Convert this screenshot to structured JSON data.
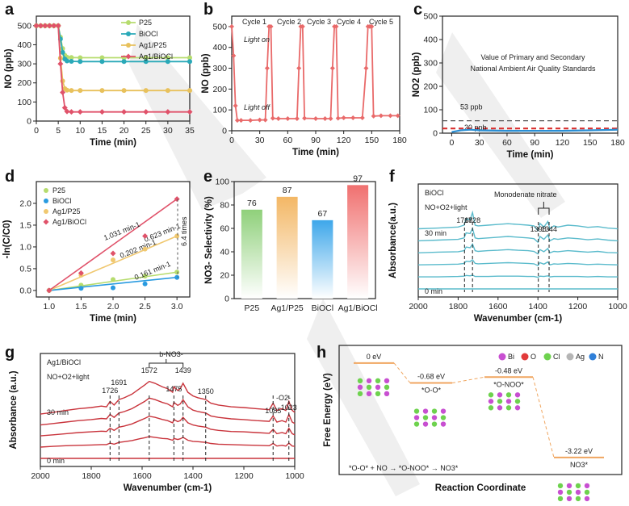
{
  "chart_data": [
    {
      "id": "a",
      "panel_label": "a",
      "type": "line",
      "xlabel": "Time (min)",
      "ylabel": "NO (ppb)",
      "xlim": [
        0,
        35
      ],
      "ylim": [
        0,
        550
      ],
      "xticks": [
        "0",
        "5",
        "10",
        "15",
        "20",
        "25",
        "30",
        "35"
      ],
      "yticks": [
        "0",
        "100",
        "200",
        "300",
        "400",
        "500"
      ],
      "x": [
        0,
        1,
        2,
        3,
        4,
        5,
        5.5,
        6,
        6.5,
        7,
        8,
        10,
        15,
        20,
        25,
        30,
        35
      ],
      "series": [
        {
          "name": "P25",
          "color": "#b6dc6e",
          "values": [
            500,
            500,
            500,
            500,
            500,
            500,
            440,
            380,
            345,
            335,
            333,
            332,
            332,
            332,
            332,
            332,
            332
          ]
        },
        {
          "name": "BiOCl",
          "color": "#2aa9b8",
          "values": [
            500,
            500,
            500,
            500,
            500,
            500,
            430,
            360,
            325,
            315,
            313,
            312,
            312,
            312,
            312,
            312,
            312
          ]
        },
        {
          "name": "Ag1/P25",
          "color": "#e8c15c",
          "values": [
            500,
            500,
            500,
            500,
            500,
            500,
            330,
            210,
            170,
            162,
            160,
            160,
            160,
            160,
            160,
            160,
            160
          ]
        },
        {
          "name": "Ag1/BiOCl",
          "color": "#e0526a",
          "values": [
            500,
            500,
            500,
            500,
            500,
            500,
            300,
            150,
            70,
            50,
            48,
            48,
            48,
            48,
            48,
            48,
            48
          ]
        }
      ]
    },
    {
      "id": "b",
      "panel_label": "b",
      "type": "line",
      "xlabel": "Time (min)",
      "ylabel": "NO (ppb)",
      "xlim": [
        0,
        180
      ],
      "ylim": [
        0,
        550
      ],
      "xticks": [
        "0",
        "30",
        "60",
        "90",
        "120",
        "150",
        "180"
      ],
      "yticks": [
        "0",
        "100",
        "200",
        "300",
        "400",
        "500"
      ],
      "cycle_labels": [
        "Cycle 1",
        "Cycle 2",
        "Cycle 3",
        "Cycle 4",
        "Cycle 5"
      ],
      "annotations": [
        "Light on",
        "Light off"
      ],
      "color": "#e96a6a",
      "x": [
        0,
        2,
        4,
        6,
        10,
        20,
        30,
        36,
        38,
        40,
        42,
        44,
        50,
        60,
        70,
        72,
        74,
        76,
        78,
        90,
        100,
        106,
        108,
        110,
        112,
        114,
        120,
        130,
        140,
        144,
        146,
        148,
        150,
        152,
        160,
        170,
        178
      ],
      "values": [
        500,
        360,
        120,
        50,
        50,
        50,
        52,
        52,
        300,
        500,
        500,
        60,
        58,
        58,
        58,
        300,
        500,
        500,
        60,
        58,
        58,
        58,
        300,
        500,
        500,
        60,
        62,
        62,
        62,
        300,
        500,
        500,
        500,
        70,
        72,
        72,
        72
      ]
    },
    {
      "id": "c",
      "panel_label": "c",
      "type": "line",
      "xlabel": "Time (min)",
      "ylabel": "NO2 (ppb)",
      "xlim": [
        -10,
        180
      ],
      "ylim": [
        0,
        500
      ],
      "xticks": [
        "0",
        "30",
        "60",
        "90",
        "120",
        "150",
        "180"
      ],
      "yticks": [
        "0",
        "100",
        "200",
        "300",
        "400",
        "500"
      ],
      "annotation_title": "Value of Primary and Secondary National Ambient Air Quality Standards",
      "reference_lines": [
        {
          "label": "53 ppb",
          "value": 53,
          "color": "#555555"
        },
        {
          "label": "20 ppb",
          "value": 20,
          "color": "#d9302f"
        }
      ],
      "series": [
        {
          "color": "#2a8fd4",
          "x": [
            0,
            10,
            20,
            30,
            60,
            90,
            120,
            150,
            180
          ],
          "values": [
            5,
            12,
            15,
            12,
            10,
            10,
            10,
            12,
            15
          ]
        }
      ]
    },
    {
      "id": "d",
      "panel_label": "d",
      "type": "scatter",
      "xlabel": "Time (min)",
      "ylabel": "-ln(C/C0)",
      "xlim": [
        0.8,
        3.2
      ],
      "ylim": [
        -0.15,
        2.5
      ],
      "xticks": [
        "1.0",
        "1.5",
        "2.0",
        "2.5",
        "3.0"
      ],
      "yticks": [
        "0.0",
        "0.5",
        "1.0",
        "1.5",
        "2.0"
      ],
      "x": [
        1.0,
        1.5,
        2.0,
        2.5,
        3.0
      ],
      "series": [
        {
          "name": "P25",
          "color": "#b6dc6e",
          "values": [
            0.0,
            0.12,
            0.25,
            0.33,
            0.42
          ],
          "slope_label": "0.202 min-1"
        },
        {
          "name": "BiOCl",
          "color": "#2a9be0",
          "values": [
            0.0,
            0.05,
            0.06,
            0.15,
            0.3
          ],
          "slope_label": "0.161 min-1"
        },
        {
          "name": "Ag1/P25",
          "color": "#f0c870",
          "values": [
            0.0,
            0.35,
            0.7,
            0.95,
            1.25
          ],
          "slope_label": "0.623 min-1"
        },
        {
          "name": "Ag1/BiOCl",
          "color": "#e0526a",
          "values": [
            0.0,
            0.4,
            0.85,
            1.25,
            2.1
          ],
          "slope_label": "1.031 min-1"
        }
      ],
      "annotation": "6.4 times"
    },
    {
      "id": "e",
      "panel_label": "e",
      "type": "bar",
      "ylabel": "NO3- Selectivity (%)",
      "ylim": [
        0,
        100
      ],
      "yticks": [
        "0",
        "20",
        "40",
        "60",
        "80",
        "100"
      ],
      "categories": [
        "P25",
        "Ag1/P25",
        "BiOCl",
        "Ag1/BiOCl"
      ],
      "values": [
        76,
        87,
        67,
        97
      ],
      "value_labels": [
        "76",
        "87",
        "67",
        "97"
      ],
      "colors": [
        "#8fd07a",
        "#f3b765",
        "#3ea7ea",
        "#f0706f"
      ]
    },
    {
      "id": "f",
      "panel_label": "f",
      "type": "line",
      "xlabel": "Wavenumber (cm-1)",
      "ylabel": "Absorbance(a.u.)",
      "xlim": [
        2000,
        1000
      ],
      "xticks": [
        "2000",
        "1800",
        "1600",
        "1400",
        "1200",
        "1000"
      ],
      "sample": "BiOCl",
      "condition": "NO+O2+light",
      "time_labels": [
        "30 min",
        "0 min"
      ],
      "group_label": "Monodenate nitrate",
      "peaks": [
        {
          "label": "1768",
          "x": 1768
        },
        {
          "label": "1728",
          "x": 1728
        },
        {
          "label": "1398",
          "x": 1398
        },
        {
          "label": "1344",
          "x": 1344
        }
      ],
      "color": "#5bbbcc",
      "x": [
        2000,
        1900,
        1800,
        1770,
        1760,
        1740,
        1728,
        1715,
        1700,
        1650,
        1600,
        1550,
        1500,
        1450,
        1420,
        1400,
        1390,
        1370,
        1350,
        1340,
        1320,
        1300,
        1250,
        1200,
        1150,
        1100,
        1050,
        1000
      ],
      "series": [
        {
          "values": [
            0.1,
            0.12,
            0.15,
            0.2,
            0.38,
            0.35,
            0.55,
            0.2,
            0.18,
            0.2,
            0.22,
            0.24,
            0.22,
            0.2,
            0.18,
            0.05,
            0.25,
            0.15,
            0.3,
            0.1,
            0.18,
            0.15,
            0.2,
            0.18,
            0.14,
            0.16,
            0.12,
            0.1
          ]
        },
        {
          "values": [
            0.08,
            0.1,
            0.12,
            0.16,
            0.3,
            0.28,
            0.42,
            0.16,
            0.14,
            0.16,
            0.18,
            0.2,
            0.18,
            0.16,
            0.14,
            0.04,
            0.2,
            0.12,
            0.24,
            0.08,
            0.14,
            0.12,
            0.16,
            0.14,
            0.11,
            0.13,
            0.1,
            0.08
          ]
        },
        {
          "values": [
            0.06,
            0.08,
            0.09,
            0.12,
            0.22,
            0.2,
            0.3,
            0.12,
            0.1,
            0.12,
            0.13,
            0.15,
            0.13,
            0.12,
            0.1,
            0.03,
            0.15,
            0.09,
            0.18,
            0.06,
            0.1,
            0.09,
            0.12,
            0.1,
            0.08,
            0.1,
            0.07,
            0.06
          ]
        },
        {
          "values": [
            0.04,
            0.05,
            0.06,
            0.08,
            0.14,
            0.13,
            0.18,
            0.08,
            0.07,
            0.08,
            0.09,
            0.1,
            0.09,
            0.08,
            0.07,
            0.02,
            0.1,
            0.06,
            0.12,
            0.04,
            0.07,
            0.06,
            0.08,
            0.07,
            0.05,
            0.06,
            0.05,
            0.04
          ]
        },
        {
          "values": [
            0.02,
            0.02,
            0.03,
            0.04,
            0.06,
            0.05,
            0.07,
            0.03,
            0.03,
            0.03,
            0.04,
            0.04,
            0.04,
            0.03,
            0.03,
            0.01,
            0.04,
            0.03,
            0.05,
            0.02,
            0.03,
            0.03,
            0.03,
            0.03,
            0.02,
            0.03,
            0.02,
            0.02
          ]
        },
        {
          "values": [
            0,
            0,
            0,
            0,
            0,
            0,
            0,
            0,
            0,
            0,
            0,
            0,
            0,
            0,
            0,
            0,
            0,
            0,
            0,
            0,
            0,
            0,
            0,
            0,
            0,
            0,
            0,
            0
          ]
        }
      ]
    },
    {
      "id": "g",
      "panel_label": "g",
      "type": "line",
      "xlabel": "Wavenumber (cm-1)",
      "ylabel": "Absorbance (a.u.)",
      "xlim": [
        2000,
        1000
      ],
      "xticks": [
        "2000",
        "1800",
        "1600",
        "1400",
        "1200",
        "1000"
      ],
      "sample": "Ag1/BiOCl",
      "condition": "NO+O2+light",
      "time_labels": [
        "30 min",
        "0 min"
      ],
      "group_label": "b-NO3-",
      "peaks": [
        {
          "label": "1726",
          "x": 1726
        },
        {
          "label": "1691",
          "x": 1691
        },
        {
          "label": "1572",
          "x": 1572
        },
        {
          "label": "1475",
          "x": 1475
        },
        {
          "label": "1439",
          "x": 1439
        },
        {
          "label": "1350",
          "x": 1350
        },
        {
          "label": "1085",
          "x": 1085
        },
        {
          "label": "1023",
          "x": 1023
        }
      ],
      "extra_label": "-O2-",
      "color": "#c9343c",
      "x": [
        2000,
        1950,
        1900,
        1850,
        1800,
        1760,
        1740,
        1726,
        1710,
        1691,
        1670,
        1640,
        1610,
        1590,
        1572,
        1550,
        1520,
        1500,
        1480,
        1475,
        1460,
        1450,
        1439,
        1420,
        1400,
        1380,
        1350,
        1330,
        1300,
        1250,
        1200,
        1150,
        1100,
        1085,
        1070,
        1050,
        1035,
        1023,
        1010,
        1000
      ],
      "series": [
        {
          "values": [
            0.1,
            0.15,
            0.2,
            0.25,
            0.28,
            0.32,
            0.3,
            0.45,
            0.35,
            0.5,
            0.55,
            0.65,
            0.8,
            0.9,
            1.0,
            0.95,
            0.85,
            0.8,
            0.7,
            0.85,
            0.75,
            0.8,
            0.95,
            0.7,
            0.6,
            0.55,
            0.5,
            0.4,
            0.35,
            0.3,
            0.28,
            0.25,
            0.22,
            0.4,
            0.2,
            0.25,
            0.2,
            0.45,
            0.2,
            0.15
          ]
        },
        {
          "values": [
            0.08,
            0.12,
            0.16,
            0.2,
            0.23,
            0.26,
            0.25,
            0.37,
            0.29,
            0.41,
            0.45,
            0.53,
            0.65,
            0.73,
            0.82,
            0.78,
            0.7,
            0.66,
            0.58,
            0.7,
            0.62,
            0.66,
            0.78,
            0.58,
            0.49,
            0.45,
            0.41,
            0.33,
            0.29,
            0.25,
            0.23,
            0.2,
            0.18,
            0.33,
            0.16,
            0.2,
            0.16,
            0.37,
            0.16,
            0.12
          ]
        },
        {
          "values": [
            0.06,
            0.09,
            0.12,
            0.15,
            0.17,
            0.19,
            0.18,
            0.27,
            0.21,
            0.3,
            0.33,
            0.39,
            0.48,
            0.54,
            0.6,
            0.57,
            0.51,
            0.48,
            0.42,
            0.51,
            0.45,
            0.48,
            0.57,
            0.42,
            0.36,
            0.33,
            0.3,
            0.24,
            0.21,
            0.18,
            0.17,
            0.15,
            0.13,
            0.24,
            0.12,
            0.15,
            0.12,
            0.27,
            0.12,
            0.09
          ]
        },
        {
          "values": [
            0.03,
            0.05,
            0.07,
            0.08,
            0.09,
            0.1,
            0.1,
            0.14,
            0.11,
            0.16,
            0.18,
            0.21,
            0.26,
            0.29,
            0.32,
            0.3,
            0.27,
            0.26,
            0.22,
            0.27,
            0.24,
            0.26,
            0.3,
            0.22,
            0.19,
            0.18,
            0.16,
            0.13,
            0.11,
            0.1,
            0.09,
            0.08,
            0.07,
            0.13,
            0.06,
            0.08,
            0.06,
            0.14,
            0.06,
            0.05
          ]
        },
        {
          "values": [
            0,
            0,
            0,
            0,
            0,
            0,
            0,
            0,
            0,
            0,
            0,
            0,
            0,
            0,
            0,
            0,
            0,
            0,
            0,
            0,
            0,
            0,
            0,
            0,
            0,
            0,
            0,
            0,
            0,
            0,
            0,
            0,
            0,
            0,
            0,
            0,
            0,
            0,
            0,
            0
          ]
        }
      ]
    },
    {
      "id": "h",
      "panel_label": "h",
      "type": "line",
      "xlabel": "Reaction Coordinate",
      "ylabel": "Free Energy (eV)",
      "legend": [
        {
          "label": "Bi",
          "color": "#c84fd1"
        },
        {
          "label": "O",
          "color": "#e23a3a"
        },
        {
          "label": "Cl",
          "color": "#6ed24e"
        },
        {
          "label": "Ag",
          "color": "#b5b5b5"
        },
        {
          "label": "N",
          "color": "#2f7fd8"
        }
      ],
      "states": [
        {
          "energy": 0.0,
          "label": "0 eV",
          "species": ""
        },
        {
          "energy": -0.68,
          "label": "-0.68 eV",
          "species": "*O-O*"
        },
        {
          "energy": -0.48,
          "label": "-0.48 eV",
          "species": "*O-NOO*"
        },
        {
          "energy": -3.22,
          "label": "-3.22 eV",
          "species": "NO3*"
        }
      ],
      "ylim": [
        -3.8,
        0.6
      ],
      "color": "#f0a660",
      "equation": "*O-O* + NO → *O-NOO* → NO3*"
    }
  ]
}
